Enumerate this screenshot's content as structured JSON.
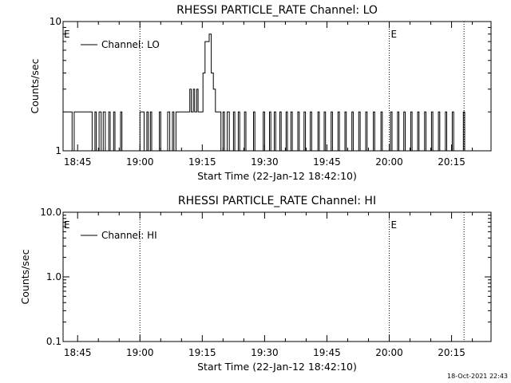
{
  "footer_date": "18-Oct-2021 22:43",
  "chart_data": [
    {
      "type": "line",
      "title": "RHESSI PARTICLE_RATE Channel: LO",
      "xlabel": "Start Time (22-Jan-12 18:42:10)",
      "ylabel": "Counts/sec",
      "yscale": "log",
      "xlim": [
        "18:41:30",
        "20:24:30"
      ],
      "ylim": [
        1,
        10
      ],
      "ytick_labels": [
        "1",
        "10"
      ],
      "xtick_labels": [
        "18:45",
        "19:00",
        "19:15",
        "19:30",
        "19:45",
        "20:00",
        "20:15"
      ],
      "grid": false,
      "legend": "top-left",
      "markers": [
        {
          "time": "19:00:00",
          "label": ""
        },
        {
          "time": "20:00:00",
          "label": "E"
        },
        {
          "time": "20:18:00",
          "label": ""
        }
      ],
      "edge_label": "E",
      "series": [
        {
          "name": "Channel: LO",
          "x": [
            "18:42:10",
            "18:43:40",
            "18:44:10",
            "18:48:10",
            "18:48:30",
            "18:49:10",
            "18:49:30",
            "18:50:10",
            "18:50:40",
            "18:51:10",
            "18:51:40",
            "18:52:30",
            "18:52:50",
            "18:53:40",
            "18:54:00",
            "18:55:20",
            "18:55:40",
            "18:59:40",
            "19:00:00",
            "19:00:40",
            "19:01:00",
            "19:01:40",
            "19:02:00",
            "19:02:30",
            "19:02:50",
            "19:04:40",
            "19:05:00",
            "19:06:40",
            "19:07:10",
            "19:07:50",
            "19:08:10",
            "19:08:40",
            "19:09:10",
            "19:12:00",
            "19:12:20",
            "19:12:50",
            "19:13:10",
            "19:13:40",
            "19:14:00",
            "19:15:10",
            "19:15:40",
            "19:16:10",
            "19:16:40",
            "19:17:10",
            "19:17:40",
            "19:18:10",
            "19:18:40",
            "19:19:00",
            "19:19:30",
            "19:20:00",
            "19:20:20",
            "19:21:00",
            "19:21:30",
            "19:22:30",
            "19:22:50",
            "19:23:40",
            "19:24:00",
            "19:25:10",
            "19:25:30",
            "19:27:20",
            "19:27:40",
            "19:29:40",
            "19:30:00",
            "19:31:10",
            "19:31:30",
            "19:32:20",
            "19:32:40",
            "19:33:40",
            "19:34:00",
            "19:35:10",
            "19:35:30",
            "19:36:20",
            "19:36:40",
            "19:38:00",
            "19:38:20",
            "19:39:30",
            "19:39:50",
            "19:41:00",
            "19:41:20",
            "19:42:50",
            "19:43:10",
            "19:44:20",
            "19:44:40",
            "19:46:00",
            "19:46:20",
            "19:47:40",
            "19:48:00",
            "19:49:20",
            "19:49:40",
            "19:51:00",
            "19:51:20",
            "19:52:40",
            "19:53:00",
            "19:54:20",
            "19:54:40",
            "19:56:10",
            "19:56:30",
            "19:58:00",
            "19:58:20",
            "20:00:20",
            "20:00:40",
            "20:02:00",
            "20:02:20",
            "20:03:30",
            "20:03:50",
            "20:05:10",
            "20:05:30",
            "20:06:50",
            "20:07:10",
            "20:08:30",
            "20:08:50",
            "20:10:10",
            "20:10:30",
            "20:11:50",
            "20:12:10",
            "20:13:30",
            "20:13:50",
            "20:15:10",
            "20:15:30",
            "20:17:50",
            "20:18:10"
          ],
          "y": [
            2,
            1,
            2,
            2,
            1,
            2,
            1,
            2,
            1,
            2,
            1,
            2,
            1,
            2,
            1,
            2,
            1,
            1,
            2,
            2,
            1,
            2,
            1,
            2,
            1,
            2,
            1,
            2,
            1,
            2,
            1,
            2,
            2,
            3,
            2,
            3,
            2,
            3,
            2,
            4,
            7,
            7,
            8,
            4,
            3,
            2,
            2,
            2,
            1,
            2,
            1,
            2,
            1,
            2,
            1,
            2,
            1,
            2,
            1,
            2,
            1,
            2,
            1,
            2,
            1,
            2,
            1,
            2,
            1,
            2,
            1,
            2,
            1,
            2,
            1,
            2,
            1,
            2,
            1,
            2,
            1,
            2,
            1,
            2,
            1,
            2,
            1,
            2,
            1,
            2,
            1,
            2,
            1,
            2,
            1,
            2,
            1,
            2,
            1,
            2,
            1,
            2,
            1,
            2,
            1,
            2,
            1,
            2,
            1,
            2,
            1,
            2,
            1,
            2,
            1,
            2,
            1,
            2,
            1,
            2,
            1
          ]
        }
      ]
    },
    {
      "type": "line",
      "title": "RHESSI PARTICLE_RATE Channel: HI",
      "xlabel": "Start Time (22-Jan-12 18:42:10)",
      "ylabel": "Counts/sec",
      "yscale": "log",
      "xlim": [
        "18:41:30",
        "20:24:30"
      ],
      "ylim": [
        0.1,
        10.0
      ],
      "ytick_labels": [
        "0.1",
        "1.0",
        "10.0"
      ],
      "xtick_labels": [
        "18:45",
        "19:00",
        "19:15",
        "19:30",
        "19:45",
        "20:00",
        "20:15"
      ],
      "grid": false,
      "legend": "top-left",
      "markers": [
        {
          "time": "19:00:00",
          "label": ""
        },
        {
          "time": "20:00:00",
          "label": "E"
        },
        {
          "time": "20:18:00",
          "label": ""
        }
      ],
      "edge_label": "E",
      "series": [
        {
          "name": "Channel: HI",
          "x": [],
          "y": []
        }
      ]
    }
  ]
}
